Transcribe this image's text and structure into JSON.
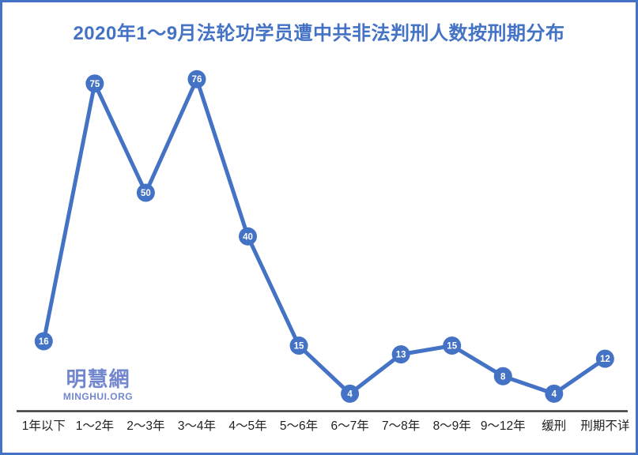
{
  "chart_data": {
    "type": "line",
    "title": "2020年1～9月法轮功学员遭中共非法判刑人数按刑期分布",
    "categories": [
      "1年以下",
      "1～2年",
      "2～3年",
      "3～4年",
      "4～5年",
      "5～6年",
      "6～7年",
      "7～8年",
      "8～9年",
      "9～12年",
      "缓刑",
      "刑期不详"
    ],
    "values": [
      16,
      75,
      50,
      76,
      40,
      15,
      4,
      13,
      15,
      8,
      4,
      12
    ],
    "xlabel": "",
    "ylabel": "",
    "ylim": [
      0,
      80
    ],
    "grid": false,
    "legend_position": "none",
    "marker_labels_shown": true
  },
  "watermark": {
    "cjk": "明慧網",
    "latin": "MINGHUI.ORG"
  },
  "colors": {
    "accent": "#4472C4",
    "line": "#4472C4",
    "marker_fill": "#4472C4",
    "marker_text": "#FFFFFF",
    "title_text": "#4472C4",
    "axis_line": "#3A3A3A",
    "axis_label_text": "#1F1F1F",
    "watermark_text": "#7287CE",
    "border": "#4472C4",
    "background": "#FFFFFF"
  }
}
